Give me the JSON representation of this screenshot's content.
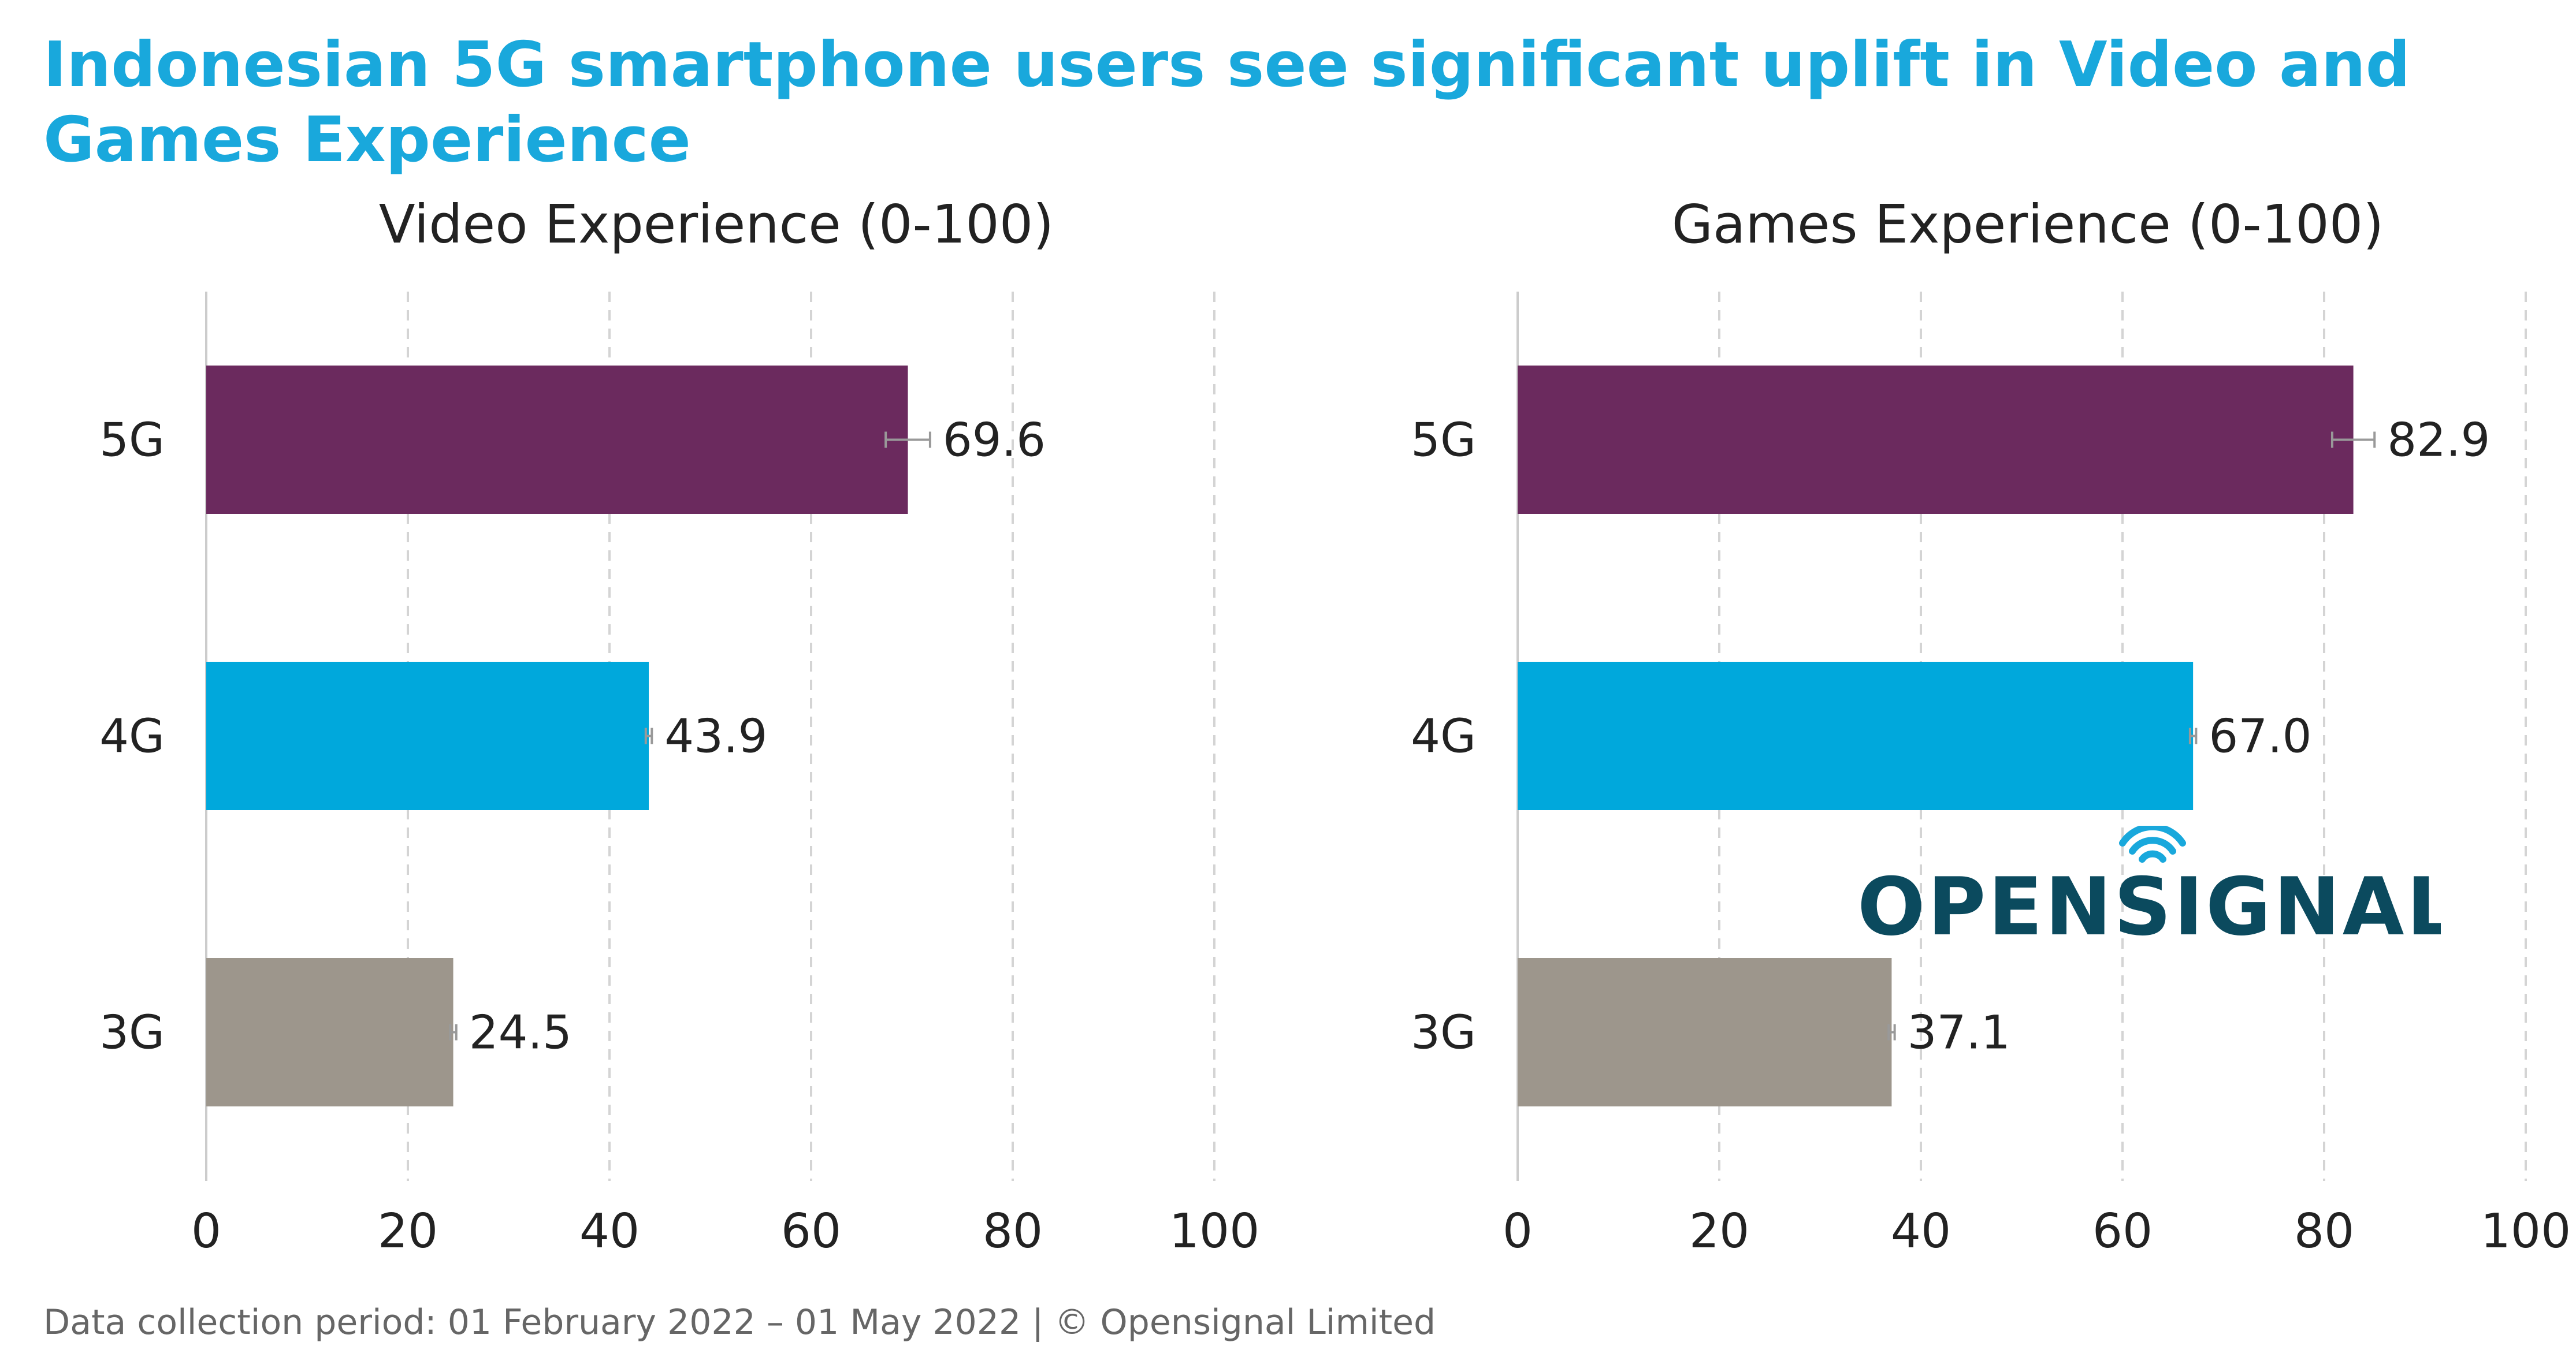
{
  "title": "Indonesian 5G smartphone users see significant uplift in Video and Games Experience",
  "footer": "Data collection period: 01 February 2022 – 01 May 2022  |  © Opensignal Limited",
  "logo": {
    "text": "OPENSIGNAL",
    "color": "#0b4a5e",
    "accent": "#19a8dc"
  },
  "colors": {
    "5G": "#6b2a5e",
    "4G": "#00a8dc",
    "3G": "#9d968c",
    "grid": "#d4d4d4",
    "axis": "#cccccc",
    "errorbar": "#999999"
  },
  "chart_data": [
    {
      "type": "bar",
      "orientation": "horizontal",
      "title": "Video Experience (0-100)",
      "categories": [
        "5G",
        "4G",
        "3G"
      ],
      "values": [
        69.6,
        43.9,
        24.5
      ],
      "value_labels": [
        "69.6",
        "43.9",
        "24.5"
      ],
      "error_bars": [
        [
          67.4,
          71.8
        ],
        [
          43.6,
          44.2
        ],
        [
          24.2,
          24.8
        ]
      ],
      "xlim": [
        0,
        100
      ],
      "xticks": [
        "0",
        "20",
        "40",
        "60",
        "80",
        "100"
      ],
      "grid": true
    },
    {
      "type": "bar",
      "orientation": "horizontal",
      "title": "Games Experience (0-100)",
      "categories": [
        "5G",
        "4G",
        "3G"
      ],
      "values": [
        82.9,
        67.0,
        37.1
      ],
      "value_labels": [
        "82.9",
        "67.0",
        "37.1"
      ],
      "error_bars": [
        [
          80.8,
          85.0
        ],
        [
          66.7,
          67.3
        ],
        [
          36.8,
          37.4
        ]
      ],
      "xlim": [
        0,
        100
      ],
      "xticks": [
        "0",
        "20",
        "40",
        "60",
        "80",
        "100"
      ],
      "grid": true
    }
  ]
}
